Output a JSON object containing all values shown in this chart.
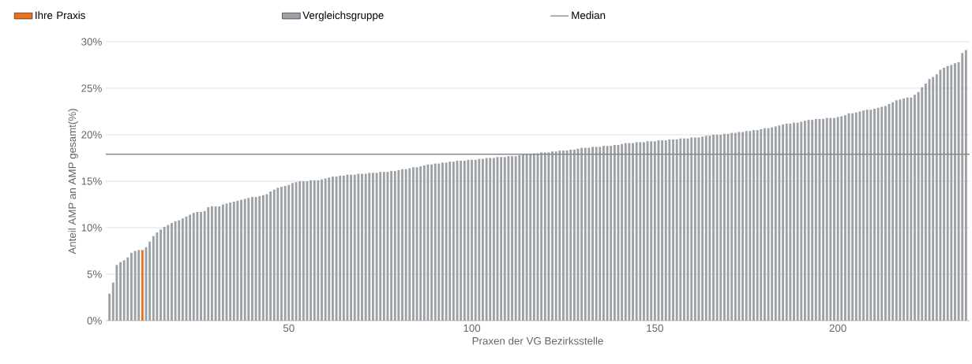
{
  "chart_data": {
    "type": "bar",
    "xlabel": "Praxen der VG Bezirksstelle",
    "ylabel": "Anteil AMP an AMP gesamt(%)",
    "x": [
      1,
      2,
      3,
      4,
      5,
      6,
      7,
      8,
      9,
      10,
      11,
      12,
      13,
      14,
      15,
      16,
      17,
      18,
      19,
      20,
      21,
      22,
      23,
      24,
      25,
      26,
      27,
      28,
      29,
      30,
      31,
      32,
      33,
      34,
      35,
      36,
      37,
      38,
      39,
      40,
      41,
      42,
      43,
      44,
      45,
      46,
      47,
      48,
      49,
      50,
      51,
      52,
      53,
      54,
      55,
      56,
      57,
      58,
      59,
      60,
      61,
      62,
      63,
      64,
      65,
      66,
      67,
      68,
      69,
      70,
      71,
      72,
      73,
      74,
      75,
      76,
      77,
      78,
      79,
      80,
      81,
      82,
      83,
      84,
      85,
      86,
      87,
      88,
      89,
      90,
      91,
      92,
      93,
      94,
      95,
      96,
      97,
      98,
      99,
      100,
      101,
      102,
      103,
      104,
      105,
      106,
      107,
      108,
      109,
      110,
      111,
      112,
      113,
      114,
      115,
      116,
      117,
      118,
      119,
      120,
      121,
      122,
      123,
      124,
      125,
      126,
      127,
      128,
      129,
      130,
      131,
      132,
      133,
      134,
      135,
      136,
      137,
      138,
      139,
      140,
      141,
      142,
      143,
      144,
      145,
      146,
      147,
      148,
      149,
      150,
      151,
      152,
      153,
      154,
      155,
      156,
      157,
      158,
      159,
      160,
      161,
      162,
      163,
      164,
      165,
      166,
      167,
      168,
      169,
      170,
      171,
      172,
      173,
      174,
      175,
      176,
      177,
      178,
      179,
      180,
      181,
      182,
      183,
      184,
      185,
      186,
      187,
      188,
      189,
      190,
      191,
      192,
      193,
      194,
      195,
      196,
      197,
      198,
      199,
      200,
      201,
      202,
      203,
      204,
      205,
      206,
      207,
      208,
      209,
      210,
      211,
      212,
      213,
      214,
      215,
      216,
      217,
      218,
      219,
      220,
      221,
      222,
      223,
      224,
      225,
      226,
      227,
      228,
      229,
      230,
      231,
      232,
      233,
      234,
      235
    ],
    "series": [
      {
        "name": "Ihre Praxis",
        "color": "#e8731f",
        "x": [
          10
        ],
        "values": [
          7.6
        ]
      },
      {
        "name": "Vergleichsgruppe",
        "color": "#9ba1a6",
        "values": [
          2.9,
          4.1,
          6.0,
          6.3,
          6.5,
          6.8,
          7.3,
          7.5,
          7.6,
          null,
          7.9,
          8.5,
          9.1,
          9.5,
          9.8,
          10.1,
          10.3,
          10.5,
          10.7,
          10.8,
          11.0,
          11.2,
          11.4,
          11.6,
          11.7,
          11.7,
          11.8,
          12.2,
          12.3,
          12.3,
          12.3,
          12.5,
          12.6,
          12.7,
          12.8,
          12.9,
          13.0,
          13.1,
          13.2,
          13.3,
          13.3,
          13.4,
          13.5,
          13.6,
          13.9,
          14.1,
          14.3,
          14.4,
          14.5,
          14.6,
          14.8,
          14.9,
          15.0,
          15.0,
          15.0,
          15.1,
          15.1,
          15.1,
          15.2,
          15.3,
          15.4,
          15.5,
          15.5,
          15.6,
          15.6,
          15.7,
          15.7,
          15.7,
          15.8,
          15.8,
          15.8,
          15.9,
          15.9,
          15.9,
          16.0,
          16.0,
          16.0,
          16.1,
          16.1,
          16.2,
          16.3,
          16.3,
          16.4,
          16.5,
          16.5,
          16.6,
          16.7,
          16.8,
          16.8,
          16.9,
          16.9,
          17.0,
          17.0,
          17.1,
          17.1,
          17.2,
          17.2,
          17.2,
          17.3,
          17.3,
          17.3,
          17.4,
          17.4,
          17.5,
          17.5,
          17.5,
          17.6,
          17.6,
          17.6,
          17.7,
          17.7,
          17.7,
          17.8,
          17.9,
          17.9,
          17.9,
          18.0,
          18.0,
          18.1,
          18.1,
          18.1,
          18.2,
          18.2,
          18.3,
          18.3,
          18.3,
          18.4,
          18.4,
          18.5,
          18.6,
          18.6,
          18.6,
          18.7,
          18.7,
          18.7,
          18.8,
          18.8,
          18.8,
          18.9,
          18.9,
          19.0,
          19.1,
          19.1,
          19.1,
          19.2,
          19.2,
          19.2,
          19.3,
          19.3,
          19.3,
          19.4,
          19.4,
          19.4,
          19.5,
          19.5,
          19.5,
          19.6,
          19.6,
          19.6,
          19.7,
          19.7,
          19.7,
          19.8,
          19.9,
          19.9,
          20.0,
          20.0,
          20.0,
          20.1,
          20.1,
          20.2,
          20.2,
          20.3,
          20.3,
          20.4,
          20.4,
          20.5,
          20.5,
          20.6,
          20.7,
          20.7,
          20.8,
          20.9,
          21.0,
          21.1,
          21.2,
          21.2,
          21.3,
          21.3,
          21.4,
          21.5,
          21.6,
          21.6,
          21.7,
          21.7,
          21.7,
          21.8,
          21.8,
          21.8,
          21.9,
          22.0,
          22.1,
          22.3,
          22.3,
          22.4,
          22.5,
          22.6,
          22.7,
          22.7,
          22.8,
          22.9,
          23.0,
          23.1,
          23.3,
          23.5,
          23.7,
          23.8,
          23.9,
          24.0,
          24.0,
          24.3,
          24.6,
          25.1,
          25.5,
          26.0,
          26.2,
          26.5,
          27.0,
          27.2,
          27.4,
          27.5,
          27.7,
          27.8,
          28.8,
          29.1
        ]
      }
    ],
    "xlim": [
      0,
      236
    ],
    "xticks": [
      50,
      100,
      150,
      200
    ],
    "ylim": [
      0,
      30
    ],
    "yticks": [
      {
        "value": 0,
        "label": "0%"
      },
      {
        "value": 5,
        "label": "5%"
      },
      {
        "value": 10,
        "label": "10%"
      },
      {
        "value": 15,
        "label": "15%"
      },
      {
        "value": 20,
        "label": "20%"
      },
      {
        "value": 25,
        "label": "25%"
      },
      {
        "value": 30,
        "label": "30%"
      }
    ],
    "ref_lines": [
      {
        "axis": "y",
        "value": 17.9,
        "label": "Median",
        "color": "#8a8a8a"
      }
    ],
    "grid": "y",
    "legend": "top"
  }
}
